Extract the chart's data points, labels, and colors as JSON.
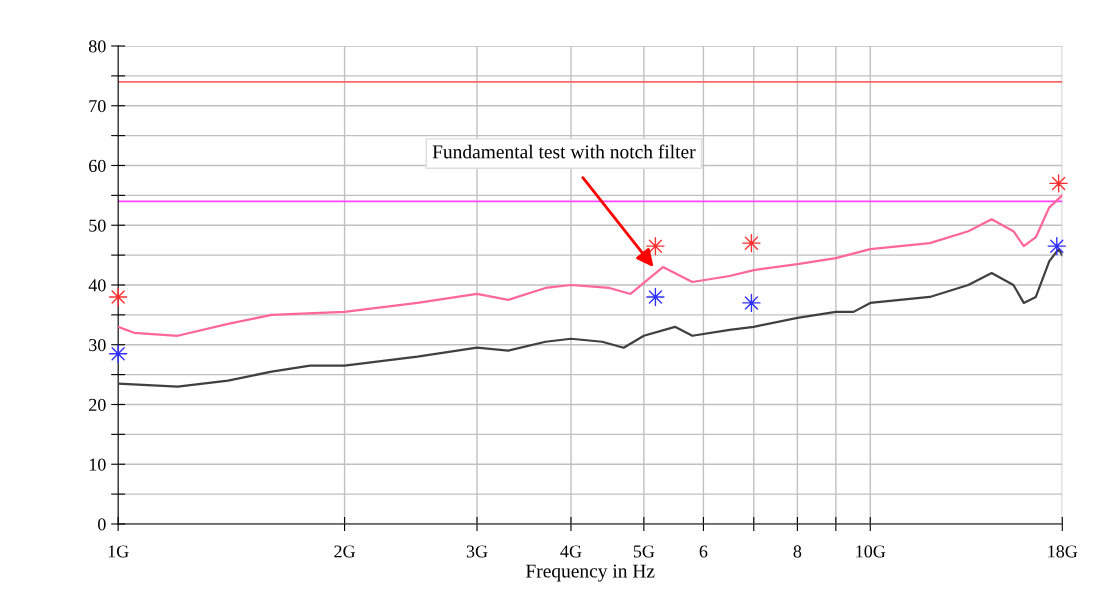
{
  "chart_data": {
    "type": "line",
    "xlabel": "Frequency in Hz",
    "log": "x",
    "grid": true,
    "xlim": [
      1,
      18
    ],
    "xticks": [
      {
        "value": 1,
        "label": "1G"
      },
      {
        "value": 2,
        "label": "2G"
      },
      {
        "value": 3,
        "label": "3G"
      },
      {
        "value": 4,
        "label": "4G"
      },
      {
        "value": 5,
        "label": "5G"
      },
      6,
      {
        "value": 7,
        "label": null
      },
      8,
      {
        "value": 9,
        "label": null
      },
      {
        "value": 10,
        "label": "10G"
      },
      {
        "value": 18,
        "label": "18G"
      }
    ],
    "ylim": [
      0,
      80
    ],
    "yticks": [
      0,
      {
        "value": 5,
        "label": null
      },
      10,
      {
        "value": 15,
        "label": null
      },
      20,
      {
        "value": 25,
        "label": null
      },
      30,
      {
        "value": 35,
        "label": null
      },
      40,
      {
        "value": 45,
        "label": null
      },
      50,
      {
        "value": 55,
        "label": null
      },
      60,
      {
        "value": 65,
        "label": null
      },
      70,
      {
        "value": 75,
        "label": null
      },
      80
    ],
    "series": [
      {
        "color": "#ff6699",
        "marker": "none",
        "x": [
          1.0,
          1.05,
          1.2,
          1.4,
          1.6,
          2.0,
          2.5,
          3.0,
          3.3,
          3.7,
          4.0,
          4.5,
          4.8,
          5.3,
          5.8,
          6.5,
          7.0,
          8.0,
          9.0,
          10,
          12,
          13.5,
          14.5,
          15.5,
          16,
          16.6,
          17.3,
          18
        ],
        "values": [
          33,
          32,
          31.5,
          33.5,
          35,
          35.5,
          37,
          38.5,
          37.5,
          39.5,
          40,
          39.5,
          38.5,
          43,
          40.5,
          41.5,
          42.5,
          43.5,
          44.5,
          46,
          47,
          49,
          51,
          49,
          46.5,
          48,
          53,
          55
        ]
      },
      {
        "color": "#404040",
        "marker": "none",
        "x": [
          1.0,
          1.2,
          1.4,
          1.6,
          1.8,
          2.0,
          2.5,
          3.0,
          3.3,
          3.7,
          4.0,
          4.4,
          4.7,
          5.0,
          5.5,
          5.8,
          6.5,
          7.0,
          8.0,
          9.0,
          9.5,
          10,
          12,
          13.5,
          14.5,
          15.5,
          16,
          16.6,
          17.3,
          17.8,
          18
        ],
        "values": [
          23.5,
          23,
          24,
          25.5,
          26.5,
          26.5,
          28,
          29.5,
          29,
          30.5,
          31,
          30.5,
          29.5,
          31.5,
          33,
          31.5,
          32.5,
          33,
          34.5,
          35.5,
          35.5,
          37,
          38,
          40,
          42,
          40,
          37,
          38,
          44,
          46,
          45
        ]
      },
      {
        "type": "scatter",
        "color": "#ff3030",
        "marker": "cross",
        "x": [
          1.0,
          5.18,
          6.95,
          17.8
        ],
        "values": [
          38,
          46.5,
          47,
          57
        ]
      },
      {
        "type": "scatter",
        "color": "#3030ff",
        "marker": "cross",
        "x": [
          1.0,
          5.18,
          6.95,
          17.7
        ],
        "values": [
          28.5,
          38,
          37,
          46.5
        ]
      }
    ],
    "ref_lines": [
      {
        "axis": "y",
        "value": 74,
        "color": "#ff6666"
      },
      {
        "axis": "y",
        "value": 54,
        "color": "#ff44ff"
      }
    ],
    "annotations": [
      {
        "text": "Fundamental test with notch filter",
        "x": 5.15,
        "y": 43
      }
    ]
  }
}
